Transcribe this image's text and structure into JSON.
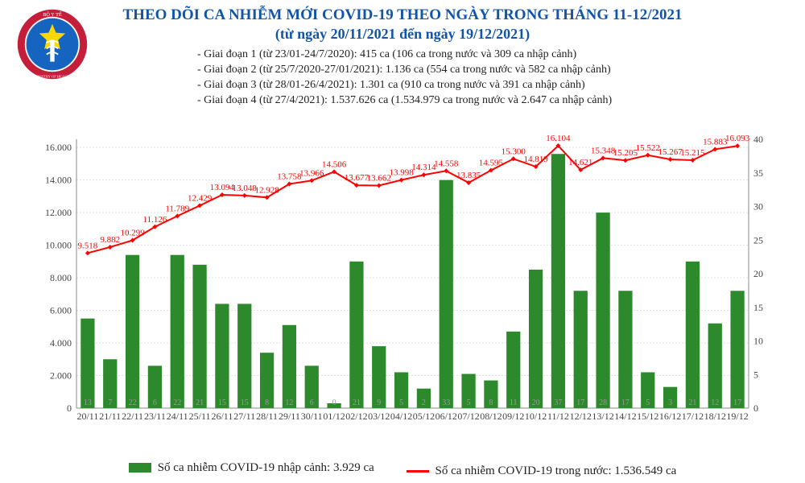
{
  "header": {
    "title_main": "THEO DÕI CA NHIỄM MỚI COVID-19 THEO NGÀY TRONG THÁNG 11-12/2021",
    "title_sub": "(từ ngày 20/11/2021 đến ngày 19/12/2021)"
  },
  "stages": [
    "- Giai đoạn 1 (từ 23/01-24/7/2020): 415 ca (106 ca trong nước và 309 ca nhập cảnh)",
    "- Giai đoạn 2 (từ 25/7/2020-27/01/2021): 1.136 ca (554 ca trong nước và 582 ca nhập cảnh)",
    "- Giai đoạn 3 (từ 28/01-26/4/2021): 1.301 ca (910 ca trong nước và 391 ca nhập cảnh)",
    "- Giai đoạn 4 (từ 27/4/2021): 1.537.626 ca (1.534.979 ca trong nước và 2.647 ca nhập cảnh)"
  ],
  "legend": {
    "bar_label": "Số ca nhiễm COVID-19 nhập cảnh: 3.929 ca",
    "line_label": "Số ca nhiễm COVID-19 trong nước: 1.536.549 ca"
  },
  "logo": {
    "top_text": "BỘ Y TẾ",
    "bottom_text": "MINISTRY OF HEALTH"
  },
  "chart": {
    "type": "bar+line",
    "background_color": "#ffffff",
    "grid_color": "#e0e0e0",
    "bar_color": "#2c8a2c",
    "line_color": "#ff0000",
    "marker_style": "diamond",
    "primary_y": {
      "label_interval": 2000,
      "min": 0,
      "max": 16500,
      "ticks": [
        "0",
        "2.000",
        "4.000",
        "6.000",
        "8.000",
        "10.000",
        "12.000",
        "14.000",
        "16.000"
      ]
    },
    "secondary_y": {
      "min": 0,
      "max": 40,
      "ticks": [
        "0",
        "5",
        "10",
        "15",
        "20",
        "25",
        "30",
        "35",
        "40"
      ]
    },
    "categories": [
      "20/11",
      "21/11",
      "22/11",
      "23/11",
      "24/11",
      "25/11",
      "26/11",
      "27/11",
      "28/11",
      "29/11",
      "30/11",
      "01/12",
      "02/12",
      "03/12",
      "04/12",
      "05/12",
      "06/12",
      "07/12",
      "08/12",
      "09/12",
      "10/12",
      "11/12",
      "12/12",
      "13/12",
      "14/12",
      "15/12",
      "16/12",
      "17/12",
      "18/12",
      "19/12"
    ],
    "bar_values": [
      13,
      7,
      22,
      6,
      22,
      21,
      15,
      15,
      8,
      12,
      6,
      0,
      21,
      9,
      5,
      2,
      33,
      5,
      8,
      11,
      20,
      37,
      17,
      28,
      17,
      5,
      3,
      21,
      12,
      17
    ],
    "line_values": [
      9518,
      9882,
      10299,
      11126,
      11789,
      12429,
      13094,
      13048,
      12928,
      13758,
      13966,
      14506,
      13677,
      13662,
      13998,
      14314,
      14558,
      13835,
      14595,
      15300,
      14819,
      16104,
      14621,
      15348,
      15205,
      15522,
      15267,
      15215,
      15883,
      16093
    ],
    "line_labels": [
      "9.518",
      "9.882",
      "10.299",
      "11.126",
      "11.789",
      "12.429",
      "13.094",
      "13.048",
      "12.928",
      "13.758",
      "13.966",
      "14.506",
      "13.677",
      "13.662",
      "13.998",
      "14.314",
      "14.558",
      "13.835",
      "14.595",
      "15.300",
      "14.819",
      "16.104",
      "14.621",
      "15.348",
      "15.205",
      "15.522",
      "15.267",
      "15.215",
      "15.883",
      "16.093"
    ],
    "highlight_bars": {
      "06/12": 14000,
      "13/12": 12000,
      "17/12": 9000,
      "22/11": 9400,
      "24/11": 9400,
      "20/11": 5500,
      "25/11": 8800,
      "26/11": 6400,
      "27/11": 6400,
      "21/11": 3000,
      "23/11": 2600,
      "28/11": 3400,
      "29/11": 5100,
      "30/11": 2600,
      "02/12": 9000,
      "03/12": 3800,
      "04/12": 2200,
      "05/12": 1200,
      "07/12": 2100,
      "08/12": 1700,
      "09/12": 4700,
      "10/12": 8500,
      "11/12": 15600,
      "12/12": 7200,
      "14/12": 7200,
      "15/12": 2200,
      "16/12": 1300,
      "18/12": 5200,
      "19/12": 7200,
      "01/12": 300
    }
  }
}
